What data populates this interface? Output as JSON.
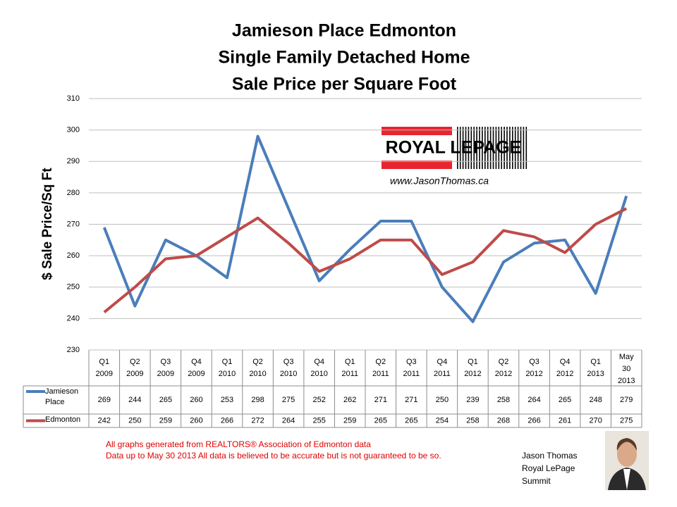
{
  "chart_data": {
    "type": "line",
    "title": [
      "Jamieson Place Edmonton",
      "Single Family Detached Home",
      "Sale Price per Square Foot"
    ],
    "y_label": "$ Sale Price/Sq Ft",
    "categories": [
      [
        "Q1",
        "2009"
      ],
      [
        "Q2",
        "2009"
      ],
      [
        "Q3",
        "2009"
      ],
      [
        "Q4",
        "2009"
      ],
      [
        "Q1",
        "2010"
      ],
      [
        "Q2",
        "2010"
      ],
      [
        "Q3",
        "2010"
      ],
      [
        "Q4",
        "2010"
      ],
      [
        "Q1",
        "2011"
      ],
      [
        "Q2",
        "2011"
      ],
      [
        "Q3",
        "2011"
      ],
      [
        "Q4",
        "2011"
      ],
      [
        "Q1",
        "2012"
      ],
      [
        "Q2",
        "2012"
      ],
      [
        "Q3",
        "2012"
      ],
      [
        "Q4",
        "2012"
      ],
      [
        "Q1",
        "2013"
      ],
      [
        "May",
        "30",
        "2013"
      ]
    ],
    "series": [
      {
        "name": "Jamieson Place",
        "color": "#4a7ebb",
        "values": [
          269,
          244,
          265,
          260,
          253,
          298,
          275,
          252,
          262,
          271,
          271,
          250,
          239,
          258,
          264,
          265,
          248,
          279
        ]
      },
      {
        "name": "Edmonton",
        "color": "#be4b48",
        "values": [
          242,
          250,
          259,
          260,
          266,
          272,
          264,
          255,
          259,
          265,
          265,
          254,
          258,
          268,
          266,
          261,
          270,
          275
        ]
      }
    ],
    "ylim": [
      230,
      310
    ],
    "yticks": [
      230,
      240,
      250,
      260,
      270,
      280,
      290,
      300,
      310
    ],
    "grid": true
  },
  "logo": {
    "brand": "ROYAL LEPAGE",
    "url": "www.JasonThomas.ca"
  },
  "footer": {
    "notes": [
      "All graphs generated from REALTORS® Association of Edmonton data",
      "Data up to  May 30 2013  All data is believed to be accurate but is not guaranteed to be so."
    ],
    "agent": [
      "Jason Thomas",
      "Royal LePage",
      "Summit"
    ]
  }
}
